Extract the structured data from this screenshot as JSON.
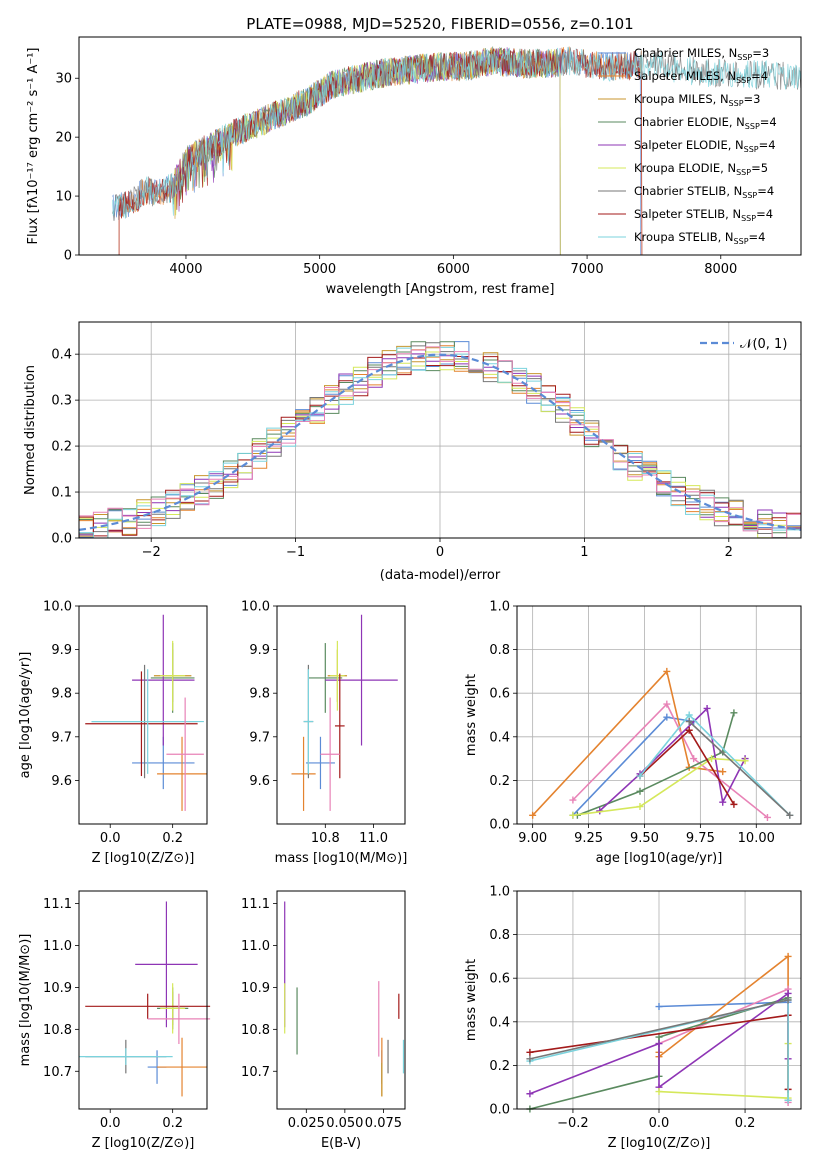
{
  "title": "PLATE=0988, MJD=52520, FIBERID=0556, z=0.101",
  "colors": {
    "Chabrier MILES": "#5b8bd6",
    "Salpeter MILES": "#e4832f",
    "Kroupa MILES": "#c8962e",
    "Chabrier ELODIE": "#5a8a5f",
    "Salpeter ELODIE": "#8e35b5",
    "Kroupa ELODIE": "#d5e85b",
    "Chabrier STELIB": "#777777",
    "Salpeter STELIB": "#a31a1a",
    "Kroupa STELIB": "#7bd3dd",
    "pink": "#e883b7",
    "normal": "#5b8bd6"
  },
  "chart_data": [
    {
      "type": "line",
      "panel": "spectrum",
      "title": "PLATE=0988, MJD=52520, FIBERID=0556, z=0.101",
      "xlabel": "wavelength [Angstrom, rest frame]",
      "ylabel": "Flux [fλ10⁻¹⁷ erg cm⁻² s⁻¹ A⁻¹]",
      "xlim": [
        3200,
        8600
      ],
      "ylim": [
        0,
        37
      ],
      "xticks": [
        4000,
        5000,
        6000,
        7000,
        8000
      ],
      "yticks": [
        0,
        10,
        20,
        30
      ],
      "grid": false,
      "legend_position": "right",
      "continuum": {
        "x": [
          3450,
          3600,
          3700,
          3800,
          3900,
          4000,
          4100,
          4200,
          4300,
          4500,
          4700,
          4900,
          5100,
          5300,
          5500,
          5700,
          5900,
          6100,
          6300,
          6500,
          6700,
          6900,
          7100,
          7300,
          7500,
          7700,
          7900,
          8100,
          8300,
          8550
        ],
        "y": [
          8,
          9,
          11,
          10.5,
          11.5,
          16,
          17.5,
          18.5,
          20,
          22,
          24,
          26,
          29,
          30,
          31,
          31.5,
          32,
          32,
          33,
          32.5,
          32.5,
          33,
          32,
          32,
          32.5,
          31.5,
          31,
          31,
          30.5,
          30.5
        ]
      },
      "series": [
        {
          "name": "Chabrier MILES, N_SSP=3",
          "label_text": "Chabrier MILES, N",
          "label_sub": "SSP",
          "label_tail": "=3",
          "start": 3450,
          "end": 7400
        },
        {
          "name": "Salpeter MILES, N_SSP=4",
          "label_text": "Salpeter MILES, N",
          "label_sub": "SSP",
          "label_tail": "=4",
          "start": 3500,
          "end": 7410
        },
        {
          "name": "Kroupa MILES, N_SSP=3",
          "label_text": "Kroupa MILES, N",
          "label_sub": "SSP",
          "label_tail": "=3",
          "start": 3900,
          "end": 6800
        },
        {
          "name": "Chabrier ELODIE, N_SSP=4",
          "label_text": "Chabrier ELODIE, N",
          "label_sub": "SSP",
          "label_tail": "=4",
          "start": 3900,
          "end": 6800
        },
        {
          "name": "Salpeter ELODIE, N_SSP=4",
          "label_text": "Salpeter ELODIE, N",
          "label_sub": "SSP",
          "label_tail": "=4",
          "start": 3900,
          "end": 6800
        },
        {
          "name": "Kroupa ELODIE, N_SSP=5",
          "label_text": "Kroupa ELODIE, N",
          "label_sub": "SSP",
          "label_tail": "=5",
          "start": 3900,
          "end": 6800
        },
        {
          "name": "Chabrier STELIB, N_SSP=4",
          "label_text": "Chabrier STELIB, N",
          "label_sub": "SSP",
          "label_tail": "=4",
          "start": 3450,
          "end": 8600
        },
        {
          "name": "Salpeter STELIB, N_SSP=4",
          "label_text": "Salpeter STELIB, N",
          "label_sub": "SSP",
          "label_tail": "=4",
          "start": 3500,
          "end": 7410
        },
        {
          "name": "Kroupa STELIB, N_SSP=4",
          "label_text": "Kroupa STELIB, N",
          "label_sub": "SSP",
          "label_tail": "=4",
          "start": 3450,
          "end": 8600
        }
      ]
    },
    {
      "type": "histogram",
      "panel": "residuals",
      "xlabel": "(data-model)/error",
      "ylabel": "Normed distribution",
      "xlim": [
        -2.5,
        2.5
      ],
      "ylim": [
        0,
        0.47
      ],
      "xticks": [
        -2,
        -1,
        0,
        1,
        2
      ],
      "xticklabels": [
        "−2",
        "−1",
        "0",
        "1",
        "2"
      ],
      "yticks": [
        0,
        0.1,
        0.2,
        0.3,
        0.4
      ],
      "yticklabels": [
        "0.0",
        "0.1",
        "0.2",
        "0.3",
        "0.4"
      ],
      "grid": true,
      "legend_position": "top-right",
      "reference_label": "𝒩(0, 1)"
    },
    {
      "type": "scatter",
      "panel": "age-vs-Z",
      "xlabel": "Z [log10(Z/Z⊙)]",
      "ylabel": "age  [log10(age/yr)]",
      "xlim": [
        -0.1,
        0.31
      ],
      "ylim": [
        9.5,
        10.0
      ],
      "xticks": [
        0,
        0.2
      ],
      "xticklabels": [
        "0.0",
        "0.2"
      ],
      "yticks": [
        9.6,
        9.7,
        9.8,
        9.9,
        10.0
      ],
      "yticklabels": [
        "9.6",
        "9.7",
        "9.8",
        "9.9",
        "10.0"
      ],
      "points": [
        {
          "s": "Chabrier MILES",
          "x": 0.17,
          "y": 9.64,
          "xe": 0.1,
          "ye": 0.06
        },
        {
          "s": "Salpeter MILES",
          "x": 0.23,
          "y": 9.615,
          "xe": 0.08,
          "ye": 0.085
        },
        {
          "s": "Kroupa MILES",
          "x": 0.2,
          "y": 9.84,
          "xe": 0.06,
          "ye": 0.06
        },
        {
          "s": "Chabrier ELODIE",
          "x": 0.2,
          "y": 9.835,
          "xe": 0.07,
          "ye": 0.08
        },
        {
          "s": "Salpeter ELODIE",
          "x": 0.17,
          "y": 9.83,
          "xe": 0.1,
          "ye": 0.15
        },
        {
          "s": "Kroupa ELODIE",
          "x": 0.2,
          "y": 9.84,
          "xe": 0.04,
          "ye": 0.08
        },
        {
          "s": "Chabrier STELIB",
          "x": 0.11,
          "y": 9.735,
          "xe": 0.17,
          "ye": 0.13
        },
        {
          "s": "Salpeter STELIB",
          "x": 0.1,
          "y": 9.73,
          "xe": 0.18,
          "ye": 0.12
        },
        {
          "s": "Kroupa STELIB",
          "x": 0.12,
          "y": 9.735,
          "xe": 0.18,
          "ye": 0.12
        },
        {
          "s": "pink",
          "x": 0.24,
          "y": 9.66,
          "xe": 0.06,
          "ye": 0.13
        }
      ]
    },
    {
      "type": "scatter",
      "panel": "age-vs-mass",
      "xlabel": "mass [log10(M/M⊙)]",
      "ylabel": "",
      "xlim": [
        10.6,
        11.13
      ],
      "ylim": [
        9.5,
        10.0
      ],
      "xticks": [
        10.8,
        11.0
      ],
      "xticklabels": [
        "10.8",
        "11.0"
      ],
      "yticks": [
        9.6,
        9.7,
        9.8,
        9.9,
        10.0
      ],
      "yticklabels": [
        "9.6",
        "9.7",
        "9.8",
        "9.9",
        "10.0"
      ],
      "points": [
        {
          "s": "Chabrier MILES",
          "x": 10.78,
          "y": 9.64,
          "xe": 0.06,
          "ye": 0.06
        },
        {
          "s": "Salpeter MILES",
          "x": 10.71,
          "y": 9.615,
          "xe": 0.05,
          "ye": 0.085
        },
        {
          "s": "Kroupa MILES",
          "x": 10.85,
          "y": 9.84,
          "xe": 0.04,
          "ye": 0.06
        },
        {
          "s": "Chabrier ELODIE",
          "x": 10.8,
          "y": 9.835,
          "xe": 0.07,
          "ye": 0.08
        },
        {
          "s": "Salpeter ELODIE",
          "x": 10.95,
          "y": 9.83,
          "xe": 0.15,
          "ye": 0.15
        },
        {
          "s": "Kroupa ELODIE",
          "x": 10.85,
          "y": 9.84,
          "xe": 0.03,
          "ye": 0.08
        },
        {
          "s": "Chabrier STELIB",
          "x": 10.73,
          "y": 9.735,
          "xe": 0.02,
          "ye": 0.13
        },
        {
          "s": "Salpeter STELIB",
          "x": 10.86,
          "y": 9.725,
          "xe": 0.02,
          "ye": 0.12
        },
        {
          "s": "Kroupa STELIB",
          "x": 10.73,
          "y": 9.735,
          "xe": 0.02,
          "ye": 0.12
        },
        {
          "s": "pink",
          "x": 10.82,
          "y": 9.66,
          "xe": 0.04,
          "ye": 0.13
        }
      ]
    },
    {
      "type": "line",
      "panel": "weight-vs-age",
      "xlabel": "age  [log10(age/yr)]",
      "ylabel": "mass weight",
      "xlim": [
        8.93,
        10.2
      ],
      "ylim": [
        0,
        1.0
      ],
      "xticks": [
        9.0,
        9.25,
        9.5,
        9.75,
        10.0
      ],
      "xticklabels": [
        "9.00",
        "9.25",
        "9.50",
        "9.75",
        "10.00"
      ],
      "yticks": [
        0,
        0.2,
        0.4,
        0.6,
        0.8,
        1.0
      ],
      "yticklabels": [
        "0.0",
        "0.2",
        "0.4",
        "0.6",
        "0.8",
        "1.0"
      ],
      "grid": true,
      "series": [
        {
          "s": "Chabrier MILES",
          "x": [
            9.18,
            9.6,
            9.72
          ],
          "y": [
            0.04,
            0.49,
            0.47
          ]
        },
        {
          "s": "Salpeter MILES",
          "x": [
            9.0,
            9.6,
            9.7,
            9.85
          ],
          "y": [
            0.04,
            0.7,
            0.26,
            0.24
          ]
        },
        {
          "s": "pink",
          "x": [
            9.18,
            9.6,
            9.72,
            10.05
          ],
          "y": [
            0.11,
            0.55,
            0.3,
            0.03
          ]
        },
        {
          "s": "Chabrier ELODIE",
          "x": [
            9.2,
            9.48,
            9.85,
            9.9
          ],
          "y": [
            0.04,
            0.15,
            0.33,
            0.51
          ]
        },
        {
          "s": "Salpeter ELODIE",
          "x": [
            9.3,
            9.48,
            9.78,
            9.85,
            9.95
          ],
          "y": [
            0.06,
            0.23,
            0.53,
            0.1,
            0.3
          ]
        },
        {
          "s": "Kroupa ELODIE",
          "x": [
            9.18,
            9.48,
            9.8,
            9.95
          ],
          "y": [
            0.04,
            0.08,
            0.3,
            0.29
          ]
        },
        {
          "s": "Salpeter STELIB",
          "x": [
            9.48,
            9.7,
            9.9
          ],
          "y": [
            0.22,
            0.43,
            0.09
          ]
        },
        {
          "s": "Kroupa STELIB",
          "x": [
            9.48,
            9.7,
            10.15
          ],
          "y": [
            0.22,
            0.5,
            0.04
          ]
        },
        {
          "s": "Chabrier STELIB",
          "x": [
            9.7,
            10.15
          ],
          "y": [
            0.47,
            0.04
          ]
        }
      ]
    },
    {
      "type": "scatter",
      "panel": "mass-vs-Z",
      "xlabel": "Z [log10(Z/Z⊙)]",
      "ylabel": "mass [log10(M/M⊙)]",
      "xlim": [
        -0.1,
        0.31
      ],
      "ylim": [
        10.61,
        11.13
      ],
      "xticks": [
        0,
        0.2
      ],
      "xticklabels": [
        "0.0",
        "0.2"
      ],
      "yticks": [
        10.7,
        10.8,
        10.9,
        11.0,
        11.1
      ],
      "yticklabels": [
        "10.7",
        "10.8",
        "10.9",
        "11.0",
        "11.1"
      ],
      "points": [
        {
          "s": "Chabrier MILES",
          "x": 0.15,
          "y": 10.71,
          "xe": 0.03,
          "ye": 0.04
        },
        {
          "s": "Salpeter MILES",
          "x": 0.23,
          "y": 10.71,
          "xe": 0.08,
          "ye": 0.07
        },
        {
          "s": "Kroupa MILES",
          "x": 0.2,
          "y": 10.85,
          "xe": 0.04,
          "ye": 0.04
        },
        {
          "s": "Chabrier ELODIE",
          "x": 0.2,
          "y": 10.85,
          "xe": 0.05,
          "ye": 0.05
        },
        {
          "s": "Salpeter ELODIE",
          "x": 0.18,
          "y": 10.955,
          "xe": 0.1,
          "ye": 0.15
        },
        {
          "s": "Kroupa ELODIE",
          "x": 0.2,
          "y": 10.85,
          "xe": 0.04,
          "ye": 0.06
        },
        {
          "s": "Chabrier STELIB",
          "x": 0.05,
          "y": 10.735,
          "xe": 0.13,
          "ye": 0.04
        },
        {
          "s": "Salpeter STELIB",
          "x": 0.12,
          "y": 10.855,
          "xe": 0.2,
          "ye": 0.03
        },
        {
          "s": "Kroupa STELIB",
          "x": 0.05,
          "y": 10.735,
          "xe": 0.15,
          "ye": 0.02
        },
        {
          "s": "pink",
          "x": 0.22,
          "y": 10.825,
          "xe": 0.1,
          "ye": 0.06
        }
      ]
    },
    {
      "type": "scatter",
      "panel": "mass-vs-EBV",
      "xlabel": "E(B-V)",
      "ylabel": "",
      "xlim": [
        0.006,
        0.089
      ],
      "ylim": [
        10.61,
        11.13
      ],
      "xticks": [
        0.025,
        0.05,
        0.075
      ],
      "xticklabels": [
        "0.025",
        "0.050",
        "0.075"
      ],
      "yticks": [
        10.7,
        10.8,
        10.9,
        11.0,
        11.1
      ],
      "yticklabels": [
        "10.7",
        "10.8",
        "10.9",
        "11.0",
        "11.1"
      ],
      "points": [
        {
          "s": "Chabrier MILES",
          "x": 0.074,
          "y": 10.71,
          "xe": 0,
          "ye": 0.04
        },
        {
          "s": "Salpeter MILES",
          "x": 0.074,
          "y": 10.71,
          "xe": 0,
          "ye": 0.07
        },
        {
          "s": "Kroupa MILES",
          "x": 0.074,
          "y": 10.68,
          "xe": 0,
          "ye": 0.04
        },
        {
          "s": "Chabrier ELODIE",
          "x": 0.019,
          "y": 10.82,
          "xe": 0,
          "ye": 0.08
        },
        {
          "s": "Salpeter ELODIE",
          "x": 0.011,
          "y": 10.955,
          "xe": 0,
          "ye": 0.15
        },
        {
          "s": "Kroupa ELODIE",
          "x": 0.011,
          "y": 10.85,
          "xe": 0,
          "ye": 0.06
        },
        {
          "s": "Chabrier STELIB",
          "x": 0.078,
          "y": 10.735,
          "xe": 0,
          "ye": 0.04
        },
        {
          "s": "Salpeter STELIB",
          "x": 0.085,
          "y": 10.855,
          "xe": 0,
          "ye": 0.03
        },
        {
          "s": "Kroupa STELIB",
          "x": 0.088,
          "y": 10.735,
          "xe": 0,
          "ye": 0.04
        },
        {
          "s": "pink",
          "x": 0.072,
          "y": 10.825,
          "xe": 0,
          "ye": 0.09
        }
      ]
    },
    {
      "type": "line",
      "panel": "weight-vs-Z",
      "xlabel": "Z [log10(Z/Z⊙)]",
      "ylabel": "mass weight",
      "xlim": [
        -0.33,
        0.33
      ],
      "ylim": [
        0,
        1.0
      ],
      "xticks": [
        -0.2,
        0,
        0.2
      ],
      "xticklabels": [
        "−0.2",
        "0.0",
        "0.2"
      ],
      "yticks": [
        0,
        0.2,
        0.4,
        0.6,
        0.8,
        1.0
      ],
      "yticklabels": [
        "0.0",
        "0.2",
        "0.4",
        "0.6",
        "0.8",
        "1.0"
      ],
      "grid": true,
      "series": [
        {
          "s": "Chabrier MILES",
          "x": [
            0,
            0.3,
            0.3
          ],
          "y": [
            0.47,
            0.49,
            0.04
          ]
        },
        {
          "s": "Salpeter MILES",
          "x": [
            0,
            0,
            0.3,
            0.3
          ],
          "y": [
            0.26,
            0.24,
            0.7,
            0.04
          ]
        },
        {
          "s": "pink",
          "x": [
            0,
            0.3,
            0.3
          ],
          "y": [
            0.3,
            0.55,
            0.03
          ]
        },
        {
          "s": "Chabrier ELODIE",
          "x": [
            -0.3,
            0,
            0,
            0.3
          ],
          "y": [
            0.0,
            0.15,
            0.33,
            0.51
          ]
        },
        {
          "s": "Salpeter ELODIE",
          "x": [
            -0.3,
            0,
            0,
            0.3,
            0.3
          ],
          "y": [
            0.07,
            0.3,
            0.1,
            0.53,
            0.23
          ]
        },
        {
          "s": "Kroupa ELODIE",
          "x": [
            0,
            0.3,
            0.3
          ],
          "y": [
            0.08,
            0.05,
            0.3
          ]
        },
        {
          "s": "Salpeter STELIB",
          "x": [
            -0.3,
            0.3,
            0.3
          ],
          "y": [
            0.26,
            0.43,
            0.09
          ]
        },
        {
          "s": "Kroupa STELIB",
          "x": [
            -0.3,
            0.3,
            0.3
          ],
          "y": [
            0.22,
            0.5,
            0.04
          ]
        },
        {
          "s": "Chabrier STELIB",
          "x": [
            -0.3,
            0.3
          ],
          "y": [
            0.23,
            0.5
          ]
        }
      ]
    }
  ]
}
